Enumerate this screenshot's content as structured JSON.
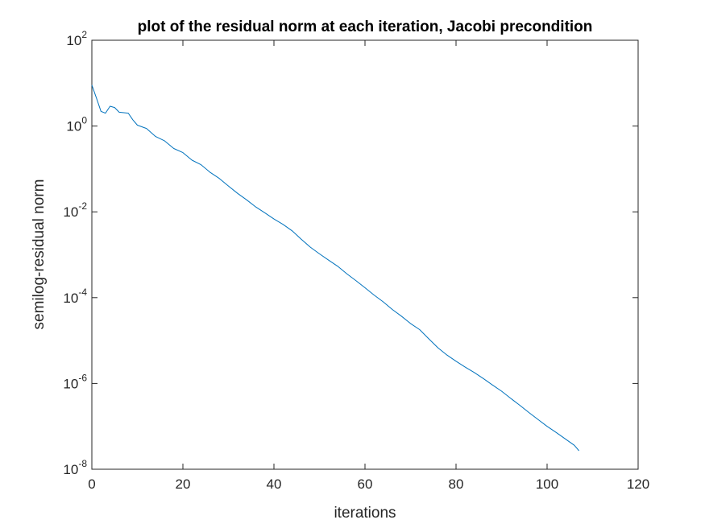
{
  "chart_data": {
    "type": "line",
    "title": "plot of the residual norm at each iteration, Jacobi precondition",
    "xlabel": "iterations",
    "ylabel": "semilog-residual norm",
    "xlim": [
      0,
      120
    ],
    "ylim": [
      1e-08,
      100
    ],
    "yscale": "log",
    "grid": false,
    "x_ticks": [
      0,
      20,
      40,
      60,
      80,
      100,
      120
    ],
    "y_ticks": [
      {
        "base": "10",
        "exp": "-8",
        "value": 1e-08
      },
      {
        "base": "10",
        "exp": "-6",
        "value": 1e-06
      },
      {
        "base": "10",
        "exp": "-4",
        "value": 0.0001
      },
      {
        "base": "10",
        "exp": "-2",
        "value": 0.01
      },
      {
        "base": "10",
        "exp": "0",
        "value": 1
      },
      {
        "base": "10",
        "exp": "2",
        "value": 100
      }
    ],
    "series": [
      {
        "color": "#0072BD",
        "x": [
          0,
          1,
          2,
          3,
          4,
          5,
          6,
          7,
          8,
          9,
          10,
          12,
          14,
          16,
          18,
          20,
          22,
          24,
          26,
          28,
          30,
          32,
          34,
          36,
          38,
          40,
          42,
          44,
          46,
          48,
          50,
          52,
          54,
          56,
          58,
          60,
          62,
          64,
          66,
          68,
          70,
          72,
          74,
          76,
          78,
          80,
          82,
          84,
          86,
          88,
          90,
          92,
          94,
          96,
          98,
          100,
          102,
          104,
          106,
          107
        ],
        "y": [
          9.0,
          4.5,
          2.2,
          2.0,
          2.9,
          2.7,
          2.1,
          2.05,
          2.0,
          1.4,
          1.05,
          0.88,
          0.57,
          0.45,
          0.3,
          0.24,
          0.16,
          0.125,
          0.083,
          0.06,
          0.04,
          0.027,
          0.019,
          0.013,
          0.0095,
          0.0068,
          0.0051,
          0.0036,
          0.0023,
          0.0015,
          0.00105,
          0.00075,
          0.00054,
          0.00036,
          0.00025,
          0.00017,
          0.000115,
          8e-05,
          5.3e-05,
          3.7e-05,
          2.5e-05,
          1.8e-05,
          1.1e-05,
          6.8e-06,
          4.6e-06,
          3.3e-06,
          2.4e-06,
          1.8e-06,
          1.3e-06,
          9.2e-07,
          6.6e-07,
          4.5e-07,
          3.1e-07,
          2.1e-07,
          1.45e-07,
          1e-07,
          7.2e-08,
          5.1e-08,
          3.6e-08,
          2.7e-08
        ]
      }
    ]
  }
}
